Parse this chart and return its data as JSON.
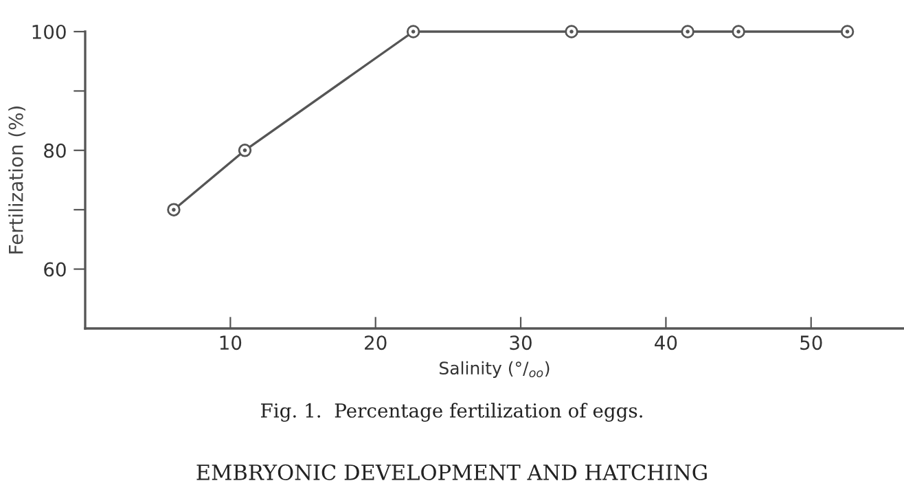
{
  "chart_data": {
    "type": "line",
    "xlabel": "Salinity (°/$_{oo}$)",
    "ylabel": "Fertilization (%)",
    "x": [
      6.1,
      11.0,
      22.6,
      33.5,
      41.5,
      45.0,
      52.5
    ],
    "series": [
      {
        "color": "#555555",
        "values": [
          70,
          80,
          100,
          100,
          100,
          100,
          100
        ]
      }
    ],
    "marker": "circle",
    "line_style": "solid",
    "grid": false,
    "xlim": [
      0,
      56.4
    ],
    "ylim": [
      50,
      100
    ],
    "xticks": [
      10,
      20,
      30,
      40,
      50
    ],
    "yticks": [
      {
        "value": 60,
        "label": "60"
      },
      {
        "value": 70,
        "label": null
      },
      {
        "value": 80,
        "label": "80"
      },
      {
        "value": 90,
        "label": null
      },
      {
        "value": 100,
        "label": "100"
      }
    ],
    "annotations": [
      "Fig. 1.  Percentage fertilization of eggs.",
      "EMBRYONIC DEVELOPMENT AND HATCHING"
    ]
  }
}
